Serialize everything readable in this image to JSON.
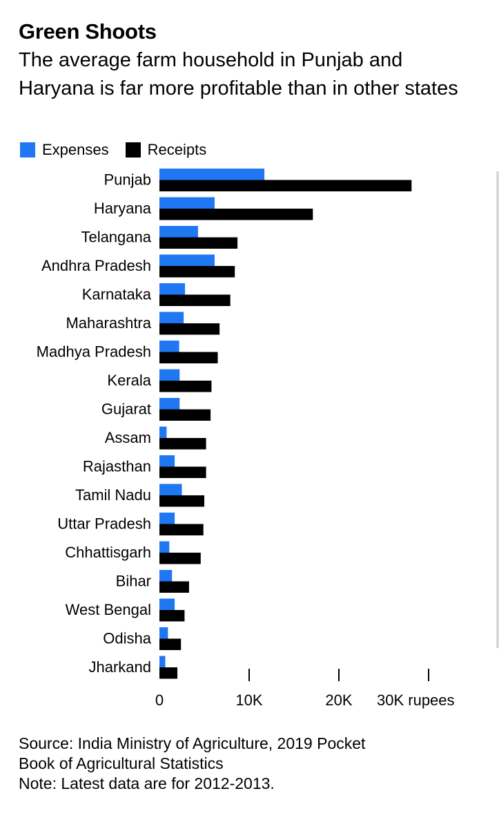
{
  "header": {
    "title": "Green Shoots",
    "subtitle": "The average farm household in Punjab and Haryana is far more profitable than in other states"
  },
  "legend": {
    "expenses": "Expenses",
    "receipts": "Receipts"
  },
  "colors": {
    "expenses": "#1f77f2",
    "receipts": "#000000"
  },
  "footer": {
    "source": "Source: India Ministry of Agriculture, 2019 Pocket",
    "source_cont": "Book of Agricultural Statistics",
    "note": "Note: Latest data are for 2012-2013."
  },
  "chart_data": {
    "type": "bar",
    "orientation": "horizontal",
    "title": "Green Shoots",
    "subtitle": "The average farm household in Punjab and Haryana is far more profitable than in other states",
    "categories": [
      "Punjab",
      "Haryana",
      "Telangana",
      "Andhra Pradesh",
      "Karnataka",
      "Maharashtra",
      "Madhya Pradesh",
      "Kerala",
      "Gujarat",
      "Assam",
      "Rajasthan",
      "Tamil Nadu",
      "Uttar Pradesh",
      "Chhattisgarh",
      "Bihar",
      "West Bengal",
      "Odisha",
      "Jharkand"
    ],
    "series": [
      {
        "name": "Expenses",
        "color": "#1f77f2",
        "values": [
          11700,
          6150,
          4300,
          6150,
          2850,
          2700,
          2200,
          2250,
          2250,
          800,
          1700,
          2500,
          1700,
          1100,
          1400,
          1700,
          950,
          650
        ]
      },
      {
        "name": "Receipts",
        "color": "#000000",
        "values": [
          28100,
          17100,
          8700,
          8400,
          7900,
          6700,
          6500,
          5800,
          5700,
          5200,
          5200,
          5000,
          4900,
          4600,
          3300,
          2800,
          2400,
          2000
        ]
      }
    ],
    "xlim": [
      0,
      30000
    ],
    "xticks": [
      0,
      10000,
      20000,
      30000
    ],
    "xtick_labels": [
      "0",
      "10K",
      "20K",
      "30K rupees"
    ],
    "legend_position": "top-left",
    "grid": false
  }
}
